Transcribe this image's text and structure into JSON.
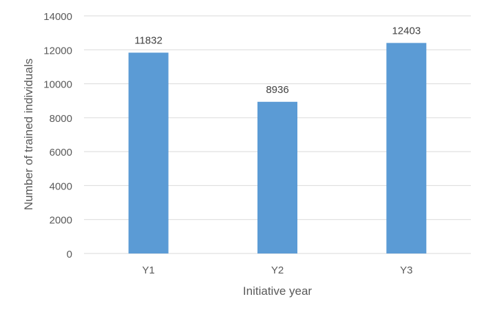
{
  "chart_data": {
    "type": "bar",
    "title": "",
    "xlabel": "Initiative year",
    "ylabel": "Number of trained individuals",
    "categories": [
      "Y1",
      "Y2",
      "Y3"
    ],
    "values": [
      11832,
      8936,
      12403
    ],
    "data_labels": [
      "11832",
      "8936",
      "12403"
    ],
    "ylim": [
      0,
      14000
    ],
    "yticks": [
      "0",
      "2000",
      "4000",
      "6000",
      "8000",
      "10000",
      "12000",
      "14000"
    ],
    "grid": true,
    "legend": "none",
    "colors": {
      "bar": "#5b9bd5",
      "grid": "#d9d9d9",
      "text": "#595959"
    }
  }
}
